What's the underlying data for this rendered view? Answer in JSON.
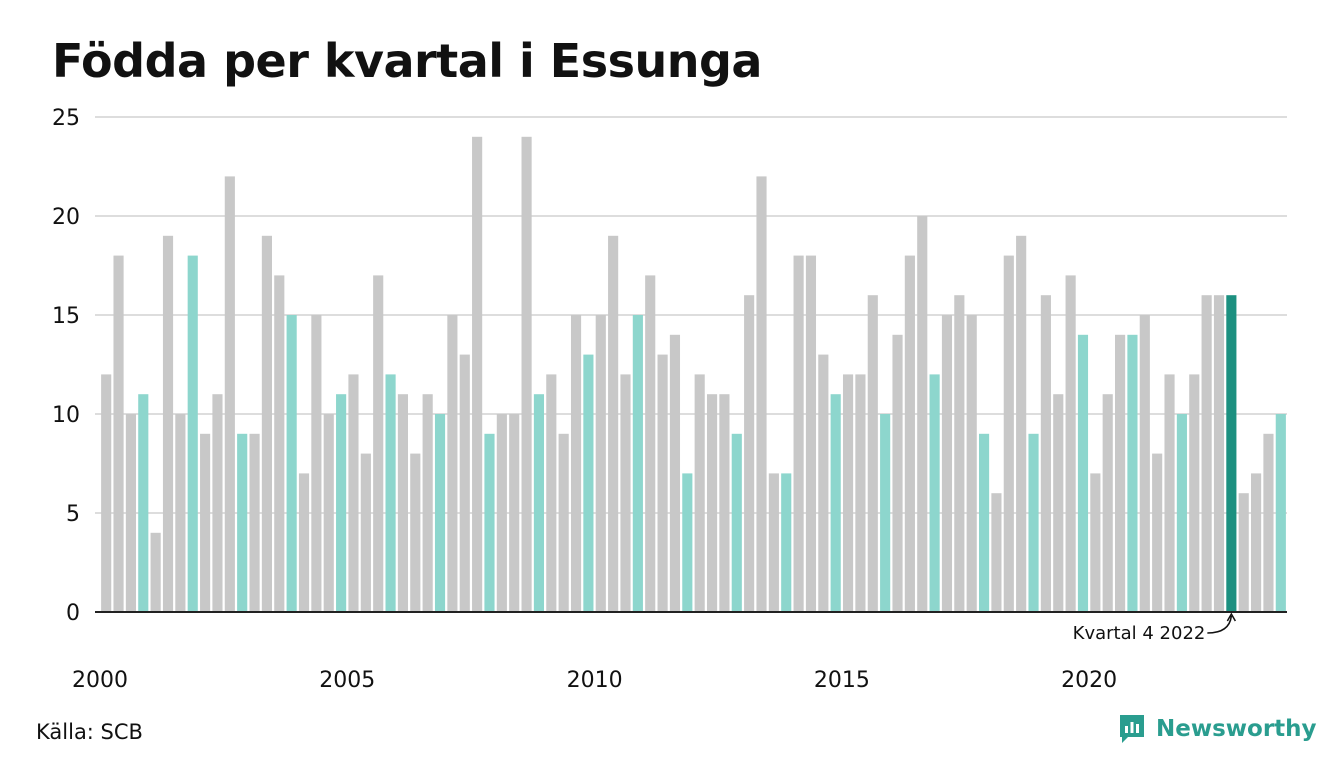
{
  "title": "Födda per kvartal i Essunga",
  "source": "Källa: SCB",
  "brand": {
    "name": "Newsworthy",
    "icon": "newsworthy-logo-icon"
  },
  "colors": {
    "q1": "#c8c8c8",
    "q4": "#8dd6cd",
    "highlight": "#1c9080",
    "grid": "#dddddd",
    "axis": "#222222",
    "text": "#111111"
  },
  "chart_data": {
    "type": "bar",
    "title": "Födda per kvartal i Essunga",
    "xlabel": "",
    "ylabel": "",
    "ylim": [
      0,
      25
    ],
    "y_ticks": [
      0,
      5,
      10,
      15,
      20,
      25
    ],
    "x_tick_labels": [
      "2000",
      "2005",
      "2010",
      "2015",
      "2020"
    ],
    "grid": true,
    "legend": "none",
    "start": {
      "year": 2000,
      "quarter": 1
    },
    "values": [
      12,
      18,
      10,
      11,
      4,
      19,
      10,
      18,
      9,
      11,
      22,
      9,
      9,
      19,
      17,
      15,
      7,
      15,
      10,
      11,
      12,
      8,
      17,
      12,
      11,
      8,
      11,
      10,
      15,
      13,
      24,
      9,
      10,
      10,
      24,
      11,
      12,
      9,
      15,
      13,
      15,
      19,
      12,
      15,
      17,
      13,
      14,
      7,
      12,
      11,
      11,
      9,
      16,
      22,
      7,
      7,
      18,
      18,
      13,
      11,
      12,
      12,
      16,
      10,
      14,
      18,
      20,
      12,
      15,
      16,
      15,
      9,
      6,
      18,
      19,
      9,
      16,
      11,
      17,
      14,
      7,
      11,
      14,
      14,
      15,
      8,
      12,
      10,
      12,
      16,
      16,
      16,
      6,
      7,
      9,
      10
    ],
    "annotation": "Kvartal 4 2022"
  }
}
